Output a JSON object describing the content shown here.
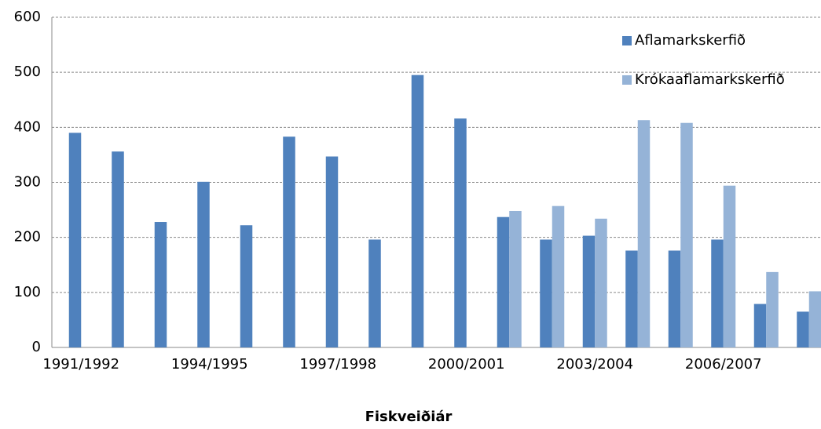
{
  "chart_data": {
    "type": "bar",
    "x_label": "Fiskveiðiár",
    "categories": [
      "1991/1992",
      null,
      null,
      "1994/1995",
      null,
      null,
      "1997/1998",
      null,
      null,
      "2000/2001",
      null,
      null,
      "2003/2004",
      null,
      null,
      "2006/2007",
      null,
      null
    ],
    "series": [
      {
        "name": "Aflamarkskerfið",
        "color": "#4f81bd",
        "values": [
          390,
          356,
          228,
          301,
          222,
          383,
          347,
          196,
          495,
          416,
          237,
          196,
          203,
          176,
          176,
          196,
          79,
          65
        ]
      },
      {
        "name": "Krókaaflamarkskerfið",
        "color": "#95b3d7",
        "values": [
          null,
          null,
          null,
          null,
          null,
          null,
          null,
          null,
          null,
          null,
          248,
          257,
          234,
          413,
          408,
          294,
          137,
          102
        ]
      }
    ],
    "ylim": [
      0,
      600
    ],
    "yticks": [
      0,
      100,
      200,
      300,
      400,
      500,
      600
    ],
    "grid": true,
    "legend": "top-right"
  }
}
